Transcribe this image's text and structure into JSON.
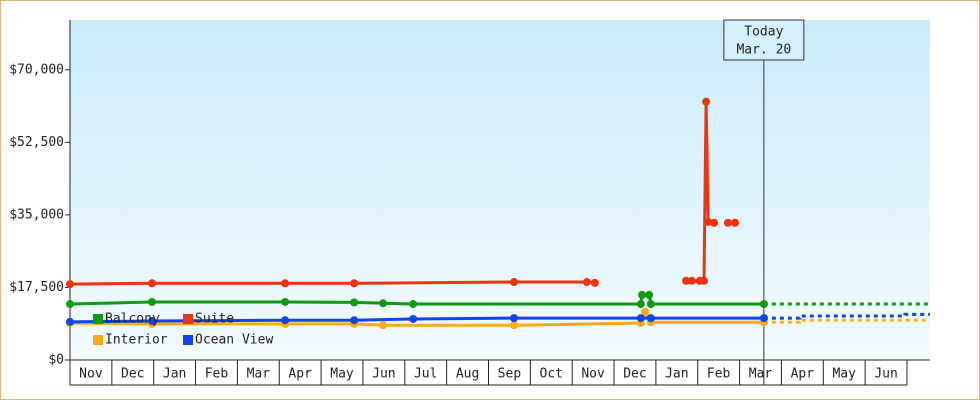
{
  "chart_data": {
    "type": "line",
    "categories": [
      "Nov",
      "Dec",
      "Jan",
      "Feb",
      "Mar",
      "Apr",
      "May",
      "Jun",
      "Jul",
      "Aug",
      "Sep",
      "Oct",
      "Nov",
      "Dec",
      "Jan",
      "Feb",
      "Mar",
      "Apr",
      "May",
      "Jun"
    ],
    "xlim": [
      0,
      20.55
    ],
    "ylim": [
      0,
      82000
    ],
    "yticks": [
      {
        "value": 0,
        "label": "$0"
      },
      {
        "value": 17500,
        "label": "$17,500"
      },
      {
        "value": 35000,
        "label": "$35,000"
      },
      {
        "value": 52500,
        "label": "$52,500"
      },
      {
        "value": 70000,
        "label": "$70,000"
      }
    ],
    "today": {
      "label": "Today",
      "date": "Mar. 20",
      "x": 16.58
    },
    "series": [
      {
        "name": "Balcony",
        "color": "#119911",
        "x": [
          0,
          1.96,
          5.14,
          6.79,
          7.48,
          8.2,
          13.64,
          13.67,
          13.84,
          13.88,
          16.58
        ],
        "values": [
          13500,
          14000,
          14000,
          13900,
          13700,
          13500,
          13500,
          15700,
          15700,
          13500,
          13500
        ],
        "forecast": {
          "x": [
            16.58,
            20.55
          ],
          "values": [
            13500,
            13500
          ]
        }
      },
      {
        "name": "Suite",
        "color": "#ee3311",
        "x": [
          0,
          1.96,
          5.14,
          6.79,
          10.61,
          12.35,
          12.54,
          13.0,
          14.72,
          14.86,
          15.05,
          15.15,
          15.2,
          15.25,
          15.39,
          15.5,
          15.72,
          15.89
        ],
        "values": [
          18300,
          18500,
          18500,
          18500,
          18800,
          18800,
          18600,
          null,
          19100,
          19100,
          19100,
          19100,
          62300,
          33300,
          33100,
          null,
          33100,
          33100
        ]
      },
      {
        "name": "Interior",
        "color": "#ffaa11",
        "x": [
          0,
          1.96,
          5.14,
          6.79,
          7.48,
          10.61,
          13.64,
          13.74,
          13.88,
          16.58
        ],
        "values": [
          8900,
          8700,
          8700,
          8700,
          8400,
          8400,
          8900,
          11600,
          9100,
          9100
        ],
        "forecast": {
          "x": [
            16.58,
            17.44,
            17.44,
            20.55
          ],
          "values": [
            9100,
            9100,
            9600,
            9600
          ]
        }
      },
      {
        "name": "Ocean View",
        "color": "#1144ee",
        "x": [
          0,
          1.96,
          5.14,
          6.79,
          8.2,
          10.61,
          13.64,
          13.88,
          16.58
        ],
        "values": [
          9200,
          9400,
          9600,
          9600,
          9900,
          10100,
          10100,
          10100,
          10100
        ],
        "forecast": {
          "x": [
            16.58,
            17.44,
            17.44,
            19.95,
            19.95,
            20.55
          ],
          "values": [
            10100,
            10100,
            10600,
            10600,
            11000,
            11000
          ]
        }
      }
    ]
  }
}
